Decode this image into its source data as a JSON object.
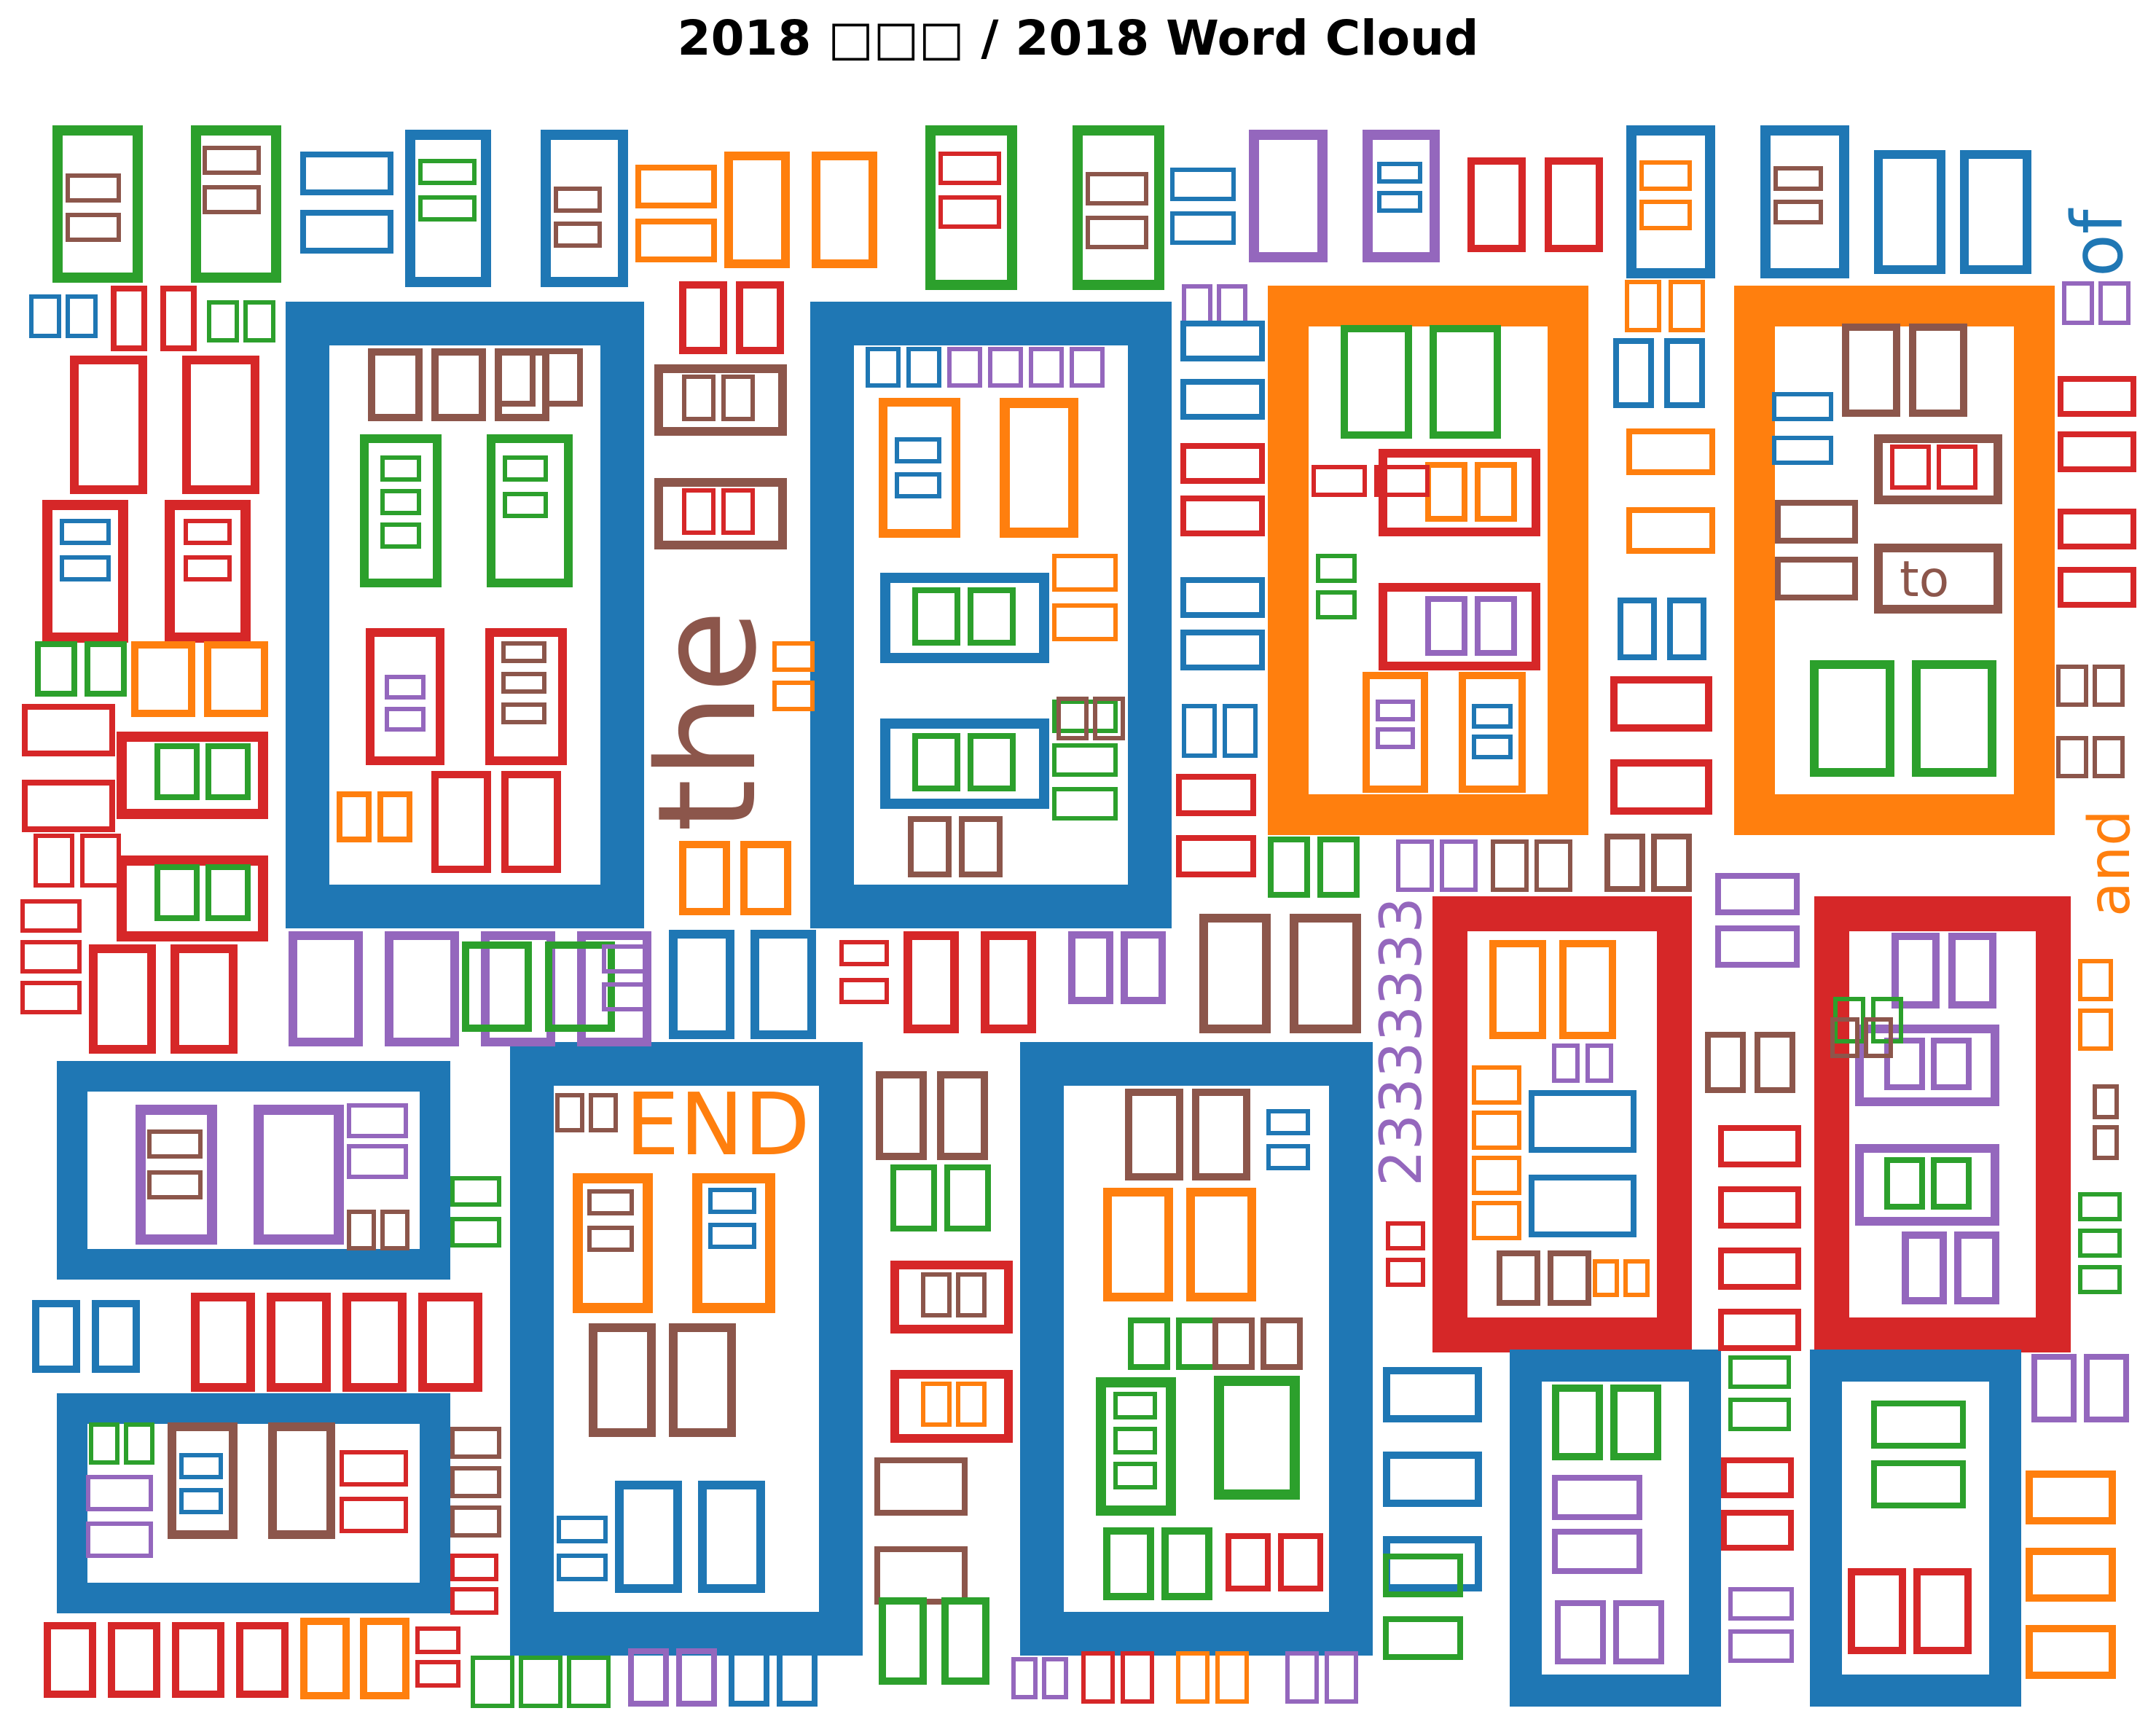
{
  "title": "2018 □□□ / 2018 Word Cloud",
  "colors": {
    "blue": "#1f77b4",
    "orange": "#ff7f0e",
    "green": "#2ca02c",
    "red": "#d62728",
    "purple": "#9467bd",
    "brown": "#8c564b"
  },
  "chart_data": {
    "type": "wordcloud",
    "title": "2018 □□□ / 2018 Word Cloud",
    "note_glyphs": "Most words are rendered as missing-glyph boxes (□); only Latin words are legible.",
    "legible_words": [
      {
        "text": "the",
        "color": "brown",
        "size": "large"
      },
      {
        "text": "of",
        "color": "blue",
        "size": "medium"
      },
      {
        "text": "and",
        "color": "orange",
        "size": "medium"
      },
      {
        "text": "to",
        "color": "brown",
        "size": "small"
      },
      {
        "text": "END",
        "color": "orange",
        "size": "medium"
      },
      {
        "text": "23333333",
        "color": "purple",
        "size": "medium"
      }
    ]
  }
}
